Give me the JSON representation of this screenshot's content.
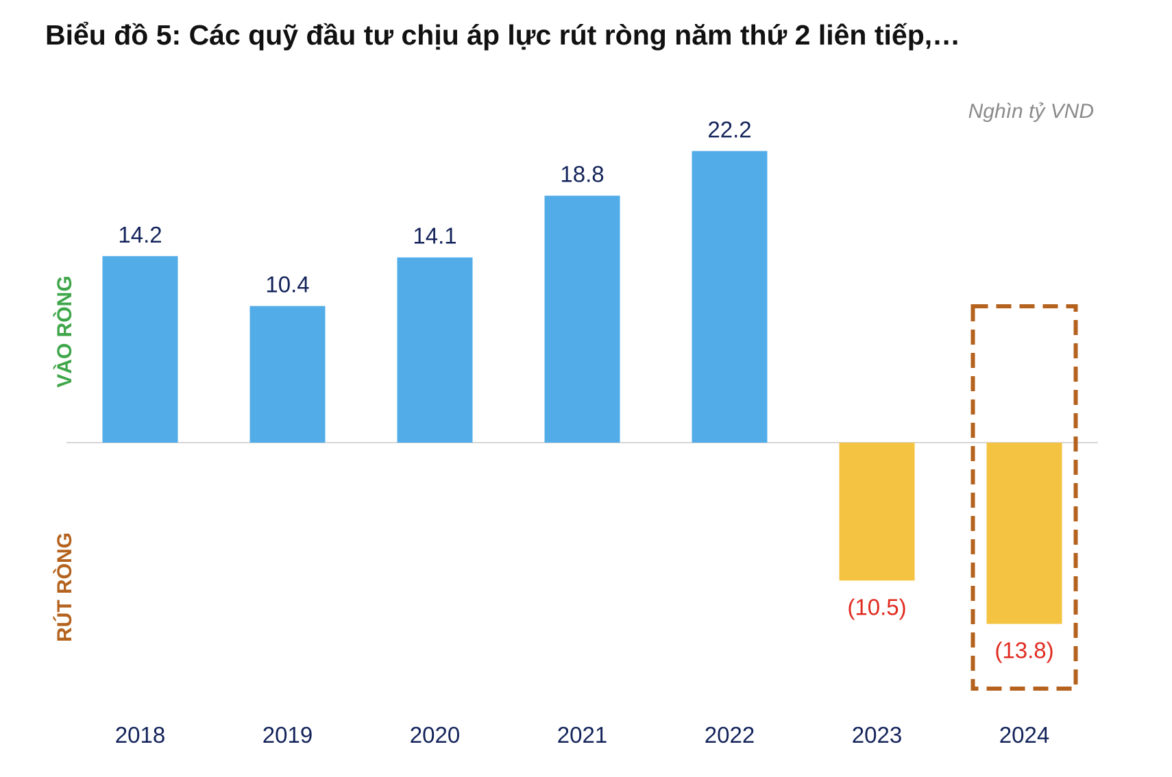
{
  "chart_data": {
    "type": "bar",
    "title": "Biểu đồ 5: Các quỹ đầu tư chịu áp lực rút ròng năm thứ 2 liên tiếp,…",
    "unit": "Nghìn tỷ VND",
    "positive_label": "VÀO RÒNG",
    "negative_label": "RÚT RÒNG",
    "categories": [
      "2018",
      "2019",
      "2020",
      "2021",
      "2022",
      "2023",
      "2024"
    ],
    "values": [
      14.2,
      10.4,
      14.1,
      18.8,
      22.2,
      -10.5,
      -13.8
    ],
    "value_labels": [
      "14.2",
      "10.4",
      "14.1",
      "18.8",
      "22.2",
      "(10.5)",
      "(13.8)"
    ],
    "highlighted_category": "2024",
    "ylim": [
      -17.5,
      26
    ],
    "grid": false,
    "colors": {
      "positive_bar": "#52ACE8",
      "negative_bar": "#F4C342",
      "positive_value_label": "#13235A",
      "negative_value_label": "#E02B20",
      "positive_side_label": "#3FA64A",
      "negative_side_label": "#B4621E",
      "highlight_box": "#B4621E",
      "axis_line": "#D6D6D6",
      "category_label": "#13235A"
    }
  }
}
